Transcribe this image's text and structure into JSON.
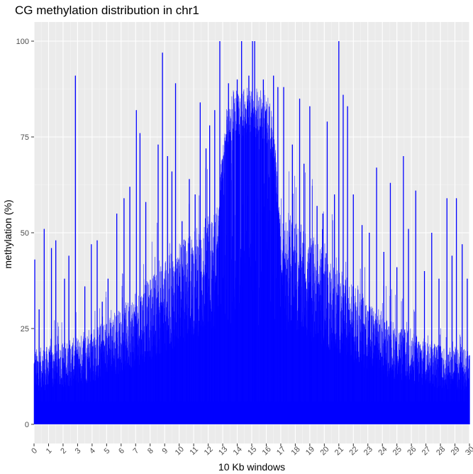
{
  "chart_data": {
    "type": "bar",
    "title": "CG methylation distribution in chr1",
    "xlabel": "10 Kb windows",
    "ylabel": "methylation (%)",
    "xlim": [
      0,
      30
    ],
    "ylim": [
      0,
      100
    ],
    "x_ticks": [
      "0",
      "1",
      "2",
      "3",
      "4",
      "5",
      "6",
      "7",
      "8",
      "9",
      "10",
      "11",
      "12",
      "13",
      "14",
      "15",
      "16",
      "17",
      "18",
      "19",
      "20",
      "21",
      "22",
      "23",
      "24",
      "25",
      "26",
      "27",
      "28",
      "29",
      "30"
    ],
    "y_ticks": [
      "0",
      "25",
      "50",
      "75",
      "100"
    ],
    "bar_color": "#0000ff",
    "panel_color": "#ebebeb",
    "grid": true,
    "legend": "none",
    "peaks": [
      {
        "x": 0.05,
        "y": 43
      },
      {
        "x": 0.35,
        "y": 30
      },
      {
        "x": 0.7,
        "y": 51
      },
      {
        "x": 1.2,
        "y": 46
      },
      {
        "x": 1.5,
        "y": 48
      },
      {
        "x": 2.1,
        "y": 38
      },
      {
        "x": 2.4,
        "y": 44
      },
      {
        "x": 2.85,
        "y": 91
      },
      {
        "x": 3.5,
        "y": 36
      },
      {
        "x": 3.95,
        "y": 47
      },
      {
        "x": 4.35,
        "y": 48
      },
      {
        "x": 4.7,
        "y": 32
      },
      {
        "x": 5.1,
        "y": 38
      },
      {
        "x": 5.7,
        "y": 55
      },
      {
        "x": 6.2,
        "y": 59
      },
      {
        "x": 6.6,
        "y": 62
      },
      {
        "x": 7.05,
        "y": 82
      },
      {
        "x": 7.3,
        "y": 76
      },
      {
        "x": 7.7,
        "y": 58
      },
      {
        "x": 8.55,
        "y": 73
      },
      {
        "x": 8.85,
        "y": 97
      },
      {
        "x": 9.2,
        "y": 70
      },
      {
        "x": 9.5,
        "y": 66
      },
      {
        "x": 9.75,
        "y": 89
      },
      {
        "x": 10.2,
        "y": 53
      },
      {
        "x": 10.7,
        "y": 64
      },
      {
        "x": 11.1,
        "y": 60
      },
      {
        "x": 11.45,
        "y": 84
      },
      {
        "x": 11.85,
        "y": 72
      },
      {
        "x": 12.1,
        "y": 78
      },
      {
        "x": 12.45,
        "y": 82
      },
      {
        "x": 12.8,
        "y": 100
      },
      {
        "x": 13.4,
        "y": 89
      },
      {
        "x": 14.0,
        "y": 90
      },
      {
        "x": 14.3,
        "y": 100
      },
      {
        "x": 14.8,
        "y": 91
      },
      {
        "x": 15.05,
        "y": 100
      },
      {
        "x": 15.2,
        "y": 100
      },
      {
        "x": 15.8,
        "y": 90
      },
      {
        "x": 16.5,
        "y": 91
      },
      {
        "x": 16.8,
        "y": 88
      },
      {
        "x": 17.2,
        "y": 88
      },
      {
        "x": 17.8,
        "y": 73
      },
      {
        "x": 18.3,
        "y": 85
      },
      {
        "x": 18.6,
        "y": 68
      },
      {
        "x": 19.0,
        "y": 83
      },
      {
        "x": 19.5,
        "y": 57
      },
      {
        "x": 19.9,
        "y": 55
      },
      {
        "x": 20.2,
        "y": 79
      },
      {
        "x": 20.7,
        "y": 60
      },
      {
        "x": 21.0,
        "y": 100
      },
      {
        "x": 21.3,
        "y": 86
      },
      {
        "x": 21.6,
        "y": 83
      },
      {
        "x": 22.0,
        "y": 60
      },
      {
        "x": 22.6,
        "y": 52
      },
      {
        "x": 23.1,
        "y": 50
      },
      {
        "x": 23.6,
        "y": 67
      },
      {
        "x": 24.1,
        "y": 45
      },
      {
        "x": 24.55,
        "y": 63
      },
      {
        "x": 25.0,
        "y": 41
      },
      {
        "x": 25.45,
        "y": 70
      },
      {
        "x": 25.8,
        "y": 51
      },
      {
        "x": 26.3,
        "y": 61
      },
      {
        "x": 26.9,
        "y": 40
      },
      {
        "x": 27.4,
        "y": 50
      },
      {
        "x": 27.9,
        "y": 38
      },
      {
        "x": 28.45,
        "y": 59
      },
      {
        "x": 28.8,
        "y": 44
      },
      {
        "x": 29.1,
        "y": 59
      },
      {
        "x": 29.5,
        "y": 47
      },
      {
        "x": 29.85,
        "y": 38
      },
      {
        "x": 30.0,
        "y": 18
      }
    ]
  }
}
